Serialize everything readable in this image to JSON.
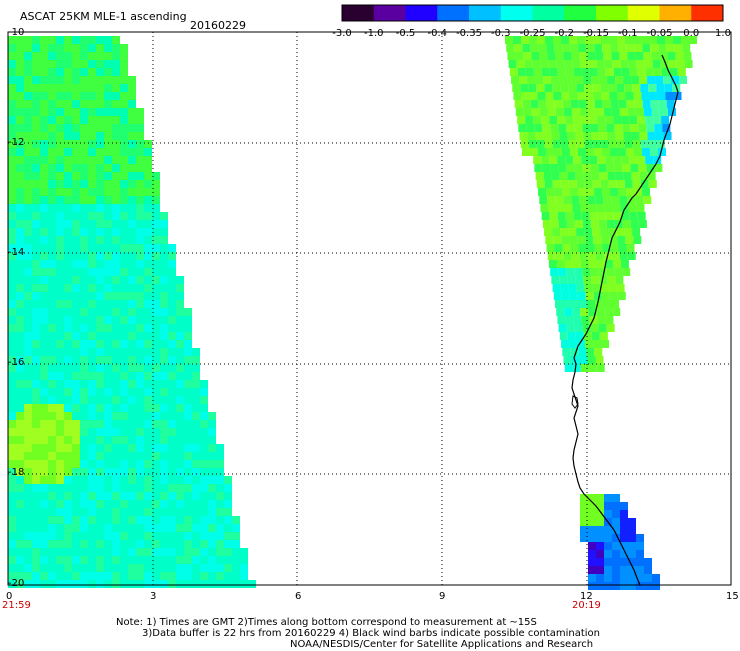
{
  "header": {
    "product": "ASCAT 25KM MLE-1 ascending",
    "date": "20160229"
  },
  "colorbar": {
    "ticks": [
      "-3.0",
      "-1.0",
      "-0.5",
      "-0.4",
      "-0.35",
      "-0.3",
      "-0.25",
      "-0.2",
      "-0.15",
      "-0.1",
      "-0.05",
      "0.0",
      "1.0"
    ],
    "colors": [
      "#2a0030",
      "#5a00a0",
      "#2000ff",
      "#0070ff",
      "#00c0ff",
      "#00ffee",
      "#00ffa0",
      "#20ff40",
      "#80ff00",
      "#e0ff00",
      "#ffb000",
      "#ff3000"
    ]
  },
  "axes": {
    "y_ticks": [
      "-10",
      "-12",
      "-14",
      "-16",
      "-18",
      "-20"
    ],
    "x_ticks": [
      "0",
      "3",
      "6",
      "9",
      "12",
      "15"
    ],
    "time_left": "21:59",
    "time_mid": "20:19"
  },
  "colors": {
    "red_label": "#cc0000",
    "coast": "#000000",
    "grid": "#000000"
  },
  "notes": {
    "line1": "Note: 1) Times are GMT 2)Times along bottom correspond to measurement at ~15S",
    "line2": "3)Data buffer is 22 hrs from 20160229 4) Black wind barbs indicate possible contamination",
    "line3": "NOAA/NESDIS/Center for Satellite Applications and Research"
  }
}
